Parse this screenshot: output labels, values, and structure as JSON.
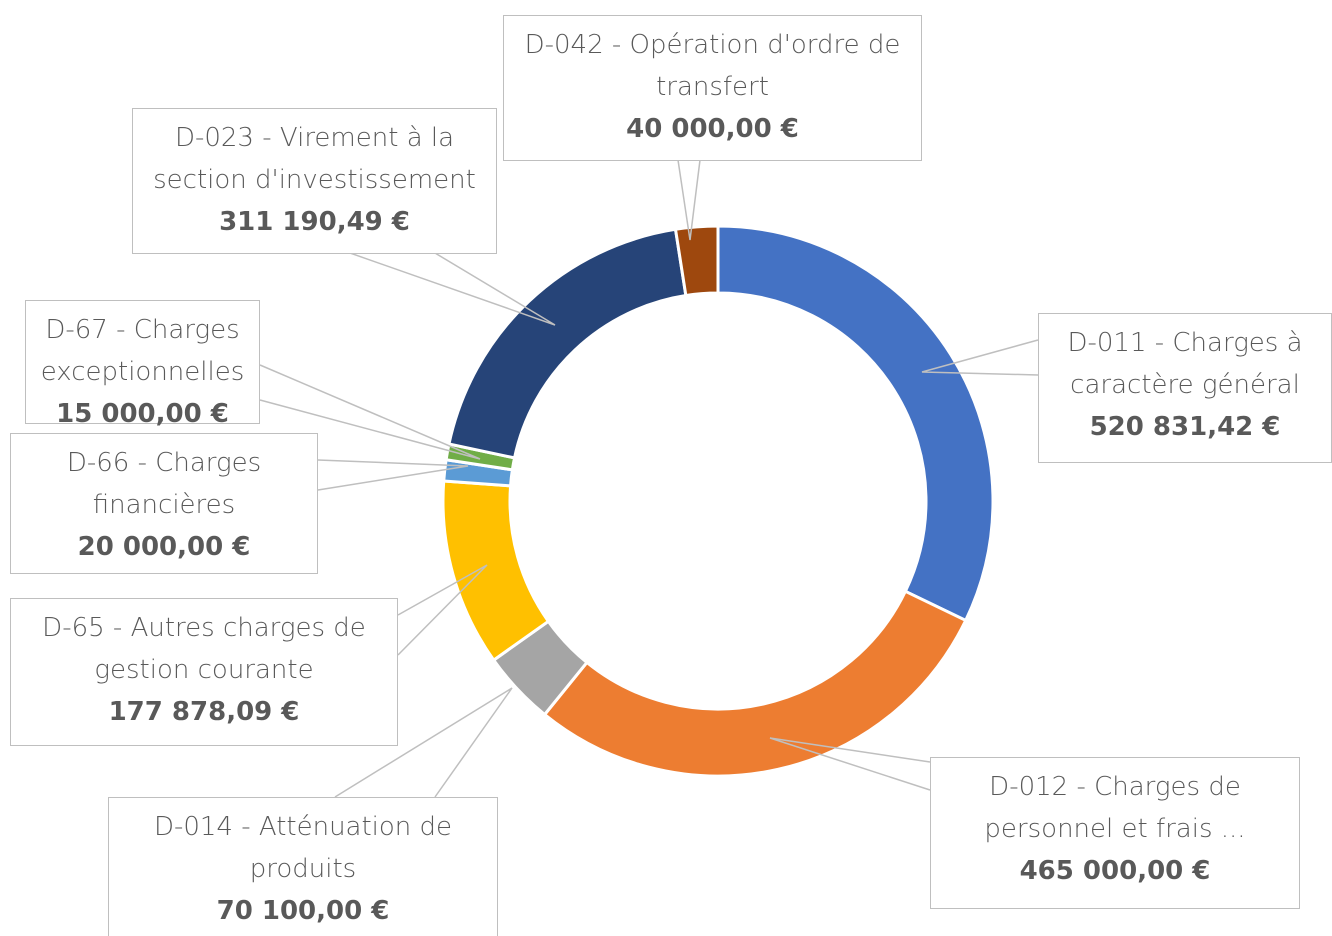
{
  "chart_data": {
    "type": "donut",
    "categories": [
      "D-011 - Charges à caractère général",
      "D-012 - Charges de personnel et frais ...",
      "D-014 - Atténuation de produits",
      "D-65 - Autres charges de gestion courante",
      "D-66 - Charges financières",
      "D-67 - Charges exceptionnelles",
      "D-023 - Virement à la section d'investissement",
      "D-042 - Opération d'ordre de transfert"
    ],
    "values": [
      520831.42,
      465000,
      70100,
      177878.09,
      20000,
      15000,
      311190.49,
      40000
    ],
    "value_labels": [
      "520 831,42 €",
      "465 000,00 €",
      "70 100,00 €",
      "177 878,09 €",
      "20 000,00 €",
      "15 000,00 €",
      "311 190,49 €",
      "40 000,00 €"
    ],
    "colors": [
      "#4472c4",
      "#ed7d31",
      "#a5a5a5",
      "#ffc000",
      "#5b9bd5",
      "#70ad47",
      "#264478",
      "#9e480e"
    ]
  }
}
